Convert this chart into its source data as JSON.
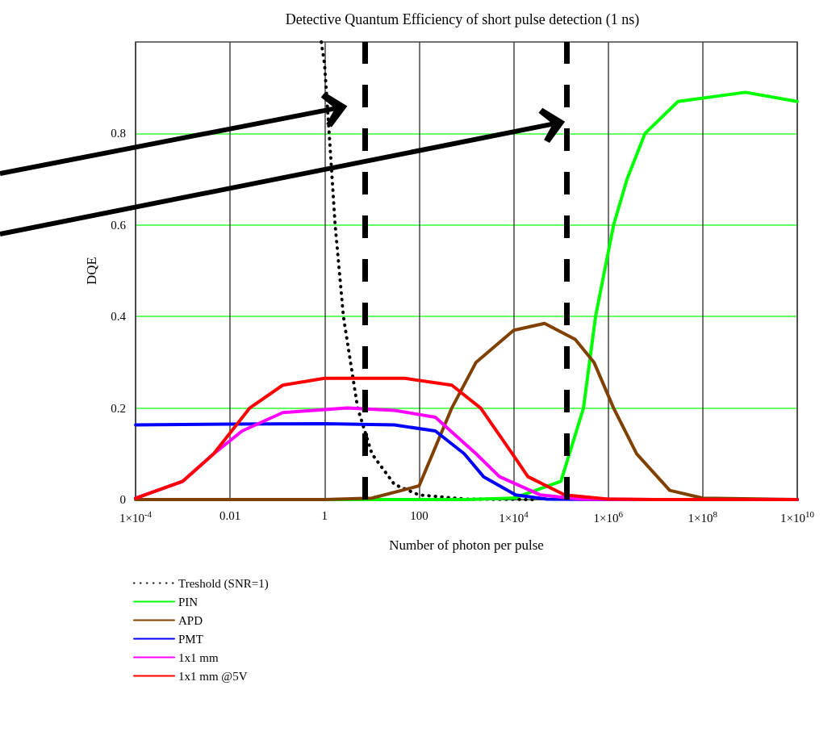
{
  "chart_data": {
    "type": "line",
    "title": "Detective Quantum Efficiency of short pulse detection (1 ns)",
    "xlabel": "Number of photon per pulse",
    "ylabel": "DQE",
    "log": "x",
    "grid": true,
    "legend": "bottom left",
    "marker": "none",
    "line_style": "solid",
    "xlim": [
      0.0001,
      10000000000
    ],
    "xticks": [
      {
        "value": 0.0001,
        "label": "1×10$^{-4}$"
      },
      0.01,
      1,
      100,
      {
        "value": 10000,
        "label": "1×10$^{4}$"
      },
      {
        "value": 1000000,
        "label": "1×10$^{6}$"
      },
      {
        "value": 100000000,
        "label": "1×10$^{8}$"
      },
      {
        "value": 10000000000,
        "label": "1×10$^{10}$"
      }
    ],
    "ylim": [
      0,
      1
    ],
    "yticks": [
      0,
      0.2,
      0.4,
      0.6,
      0.8
    ],
    "ref_lines": [
      {
        "axis": "x",
        "value": 7,
        "color": "#000000",
        "line_style": "dashed"
      },
      {
        "axis": "x",
        "value": 130000,
        "color": "#000000",
        "line_style": "dashed"
      }
    ],
    "series": [
      {
        "name": "Treshold (SNR=1)",
        "color": "#000000",
        "line_style": "dotted",
        "x": [
          0.85,
          1,
          1.25,
          1.67,
          2.5,
          5,
          10,
          30,
          100,
          1000,
          30000
        ],
        "values": [
          1,
          0.95,
          0.8,
          0.6,
          0.4,
          0.2,
          0.1,
          0.033,
          0.01,
          0.001,
          0
        ]
      },
      {
        "name": "PIN",
        "color": "#00ff00",
        "x": [
          0.0001,
          1000,
          10000,
          100000,
          300000,
          540000,
          1300000,
          2500000,
          6000000,
          30000000,
          800000000,
          10000000000
        ],
        "values": [
          0,
          0,
          0.003,
          0.04,
          0.2,
          0.4,
          0.6,
          0.7,
          0.8,
          0.87,
          0.89,
          0.87
        ]
      },
      {
        "name": "APD",
        "color": "#7f4000",
        "x": [
          0.0001,
          1,
          10,
          100,
          490,
          1600,
          10000,
          45000,
          200000,
          500000,
          1300000,
          4000000,
          20000000,
          100000000,
          10000000000
        ],
        "values": [
          0,
          0,
          0.003,
          0.03,
          0.2,
          0.3,
          0.37,
          0.385,
          0.35,
          0.3,
          0.2,
          0.1,
          0.02,
          0.003,
          0
        ]
      },
      {
        "name": "PMT",
        "color": "#0000ff",
        "x": [
          0.0001,
          0.01,
          1,
          30,
          220,
          900,
          2300,
          11000,
          50000,
          1000000,
          10000000000
        ],
        "values": [
          0.163,
          0.165,
          0.166,
          0.163,
          0.15,
          0.1,
          0.05,
          0.01,
          0.001,
          0,
          0
        ]
      },
      {
        "name": "1x1 mm",
        "color": "#ff00ff",
        "x": [
          0.0001,
          0.001,
          0.0045,
          0.018,
          0.13,
          3,
          30,
          220,
          1600,
          5000,
          37000,
          250000,
          10000000,
          10000000000
        ],
        "values": [
          0.003,
          0.04,
          0.1,
          0.15,
          0.19,
          0.2,
          0.195,
          0.18,
          0.1,
          0.05,
          0.01,
          0.001,
          0,
          0
        ]
      },
      {
        "name": "1x1 mm @5V",
        "color": "#ff0000",
        "x": [
          0.0001,
          0.001,
          0.0045,
          0.026,
          0.13,
          1,
          50,
          490,
          2000,
          9400,
          20000,
          120000,
          1000000,
          10000000,
          10000000000
        ],
        "values": [
          0.003,
          0.04,
          0.1,
          0.2,
          0.25,
          0.265,
          0.265,
          0.25,
          0.2,
          0.1,
          0.05,
          0.01,
          0.001,
          0,
          0
        ]
      }
    ]
  }
}
